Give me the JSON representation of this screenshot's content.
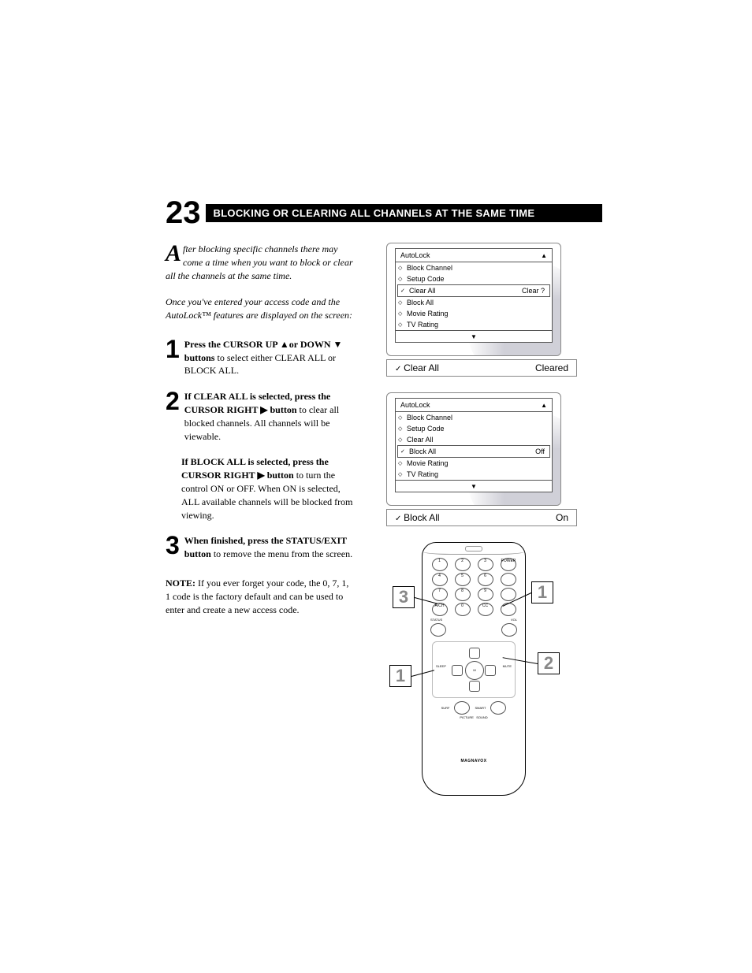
{
  "section_number": "23",
  "heading": "BLOCKING OR CLEARING ALL CHANNELS AT THE SAME TIME",
  "intro_dropcap": "A",
  "intro_p1": "fter blocking specific channels there may come a time when you want to block or clear all the channels at the same time.",
  "intro_p2": "Once you've entered your access code and the AutoLock™ features are displayed on the screen:",
  "steps": {
    "s1_num": "1",
    "s1_bold": "Press the CURSOR UP ▲or DOWN ▼ buttons",
    "s1_rest": " to select either CLEAR ALL or BLOCK ALL.",
    "s2_num": "2",
    "s2_bold": "If CLEAR ALL is selected, press the CURSOR RIGHT ▶ button",
    "s2_rest": " to clear all blocked channels. All channels will be viewable.",
    "s2b_bold": "If BLOCK ALL is selected, press the CURSOR RIGHT ▶ button",
    "s2b_rest": " to turn the control ON or OFF. When ON is selected, ALL available channels will be blocked from viewing.",
    "s3_num": "3",
    "s3_bold": "When finished, press the STATUS/EXIT button",
    "s3_rest": " to remove the menu from the screen."
  },
  "note_bold": "NOTE:",
  "note_rest": " If you ever forget your code, the 0, 7, 1, 1 code is the factory default and can be used to enter and create a new access code.",
  "osd1": {
    "title": "AutoLock",
    "items": [
      "Block Channel",
      "Setup Code",
      "Clear All",
      "Block All",
      "Movie Rating",
      "TV Rating"
    ],
    "sel_index": 2,
    "sel_value": "Clear ?",
    "status_label": "Clear All",
    "status_value": "Cleared"
  },
  "osd2": {
    "title": "AutoLock",
    "items": [
      "Block Channel",
      "Setup Code",
      "Clear All",
      "Block All",
      "Movie Rating",
      "TV Rating"
    ],
    "sel_index": 3,
    "sel_value": "Off",
    "status_label": "Block All",
    "status_value": "On"
  },
  "remote": {
    "brand": "MAGNAVOX",
    "numpad": [
      "1",
      "2",
      "3",
      "POWER",
      "4",
      "5",
      "6",
      "",
      "7",
      "8",
      "9",
      "",
      "A/CH",
      "0",
      "CC",
      ""
    ],
    "side_l": "STATUS",
    "dpad_labels": {
      "l": "SLEEP",
      "r": "MUTE"
    },
    "bottom": [
      "SURF",
      "",
      "SMART",
      "",
      "PICTURE",
      "SOUND"
    ],
    "callouts": {
      "c1": "1",
      "c2": "2",
      "c3": "3"
    }
  },
  "colors": {
    "heading_bg": "#000000",
    "heading_fg": "#ffffff",
    "text": "#000000",
    "swoosh": "#d0d0d8",
    "callout_text": "#888888"
  }
}
